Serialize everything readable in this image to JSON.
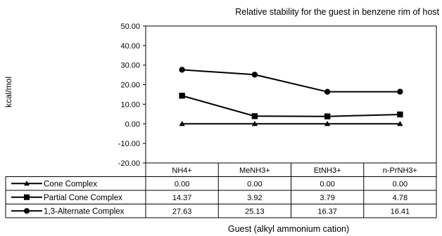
{
  "chart_data": {
    "type": "line",
    "title": "Relative stability for the guest in benzene rim of host",
    "xlabel": "Guest (alkyl ammonium cation)",
    "ylabel": "kcal/mol",
    "categories": [
      "NH4+",
      "MeNH3+",
      "EtNH3+",
      "n-PrNH3+"
    ],
    "ylim": [
      -20,
      50
    ],
    "yticks": [
      "50.00",
      "40.00",
      "30.00",
      "20.00",
      "10.00",
      "0.00",
      "-10.00",
      "-20.00"
    ],
    "grid": false,
    "legend": "data-table",
    "series": [
      {
        "name": "Cone Complex",
        "marker": "triangle",
        "values": [
          0.0,
          0.0,
          0.0,
          0.0
        ],
        "labels": [
          "0.00",
          "0.00",
          "0.00",
          "0.00"
        ]
      },
      {
        "name": "Partial Cone Complex",
        "marker": "square",
        "values": [
          14.37,
          3.92,
          3.79,
          4.78
        ],
        "labels": [
          "14.37",
          "3.92",
          "3.79",
          "4.78"
        ]
      },
      {
        "name": "1,3-Alternate Complex",
        "marker": "circle",
        "values": [
          27.63,
          25.13,
          16.37,
          16.41
        ],
        "labels": [
          "27.63",
          "25.13",
          "16.37",
          "16.41"
        ]
      }
    ]
  }
}
